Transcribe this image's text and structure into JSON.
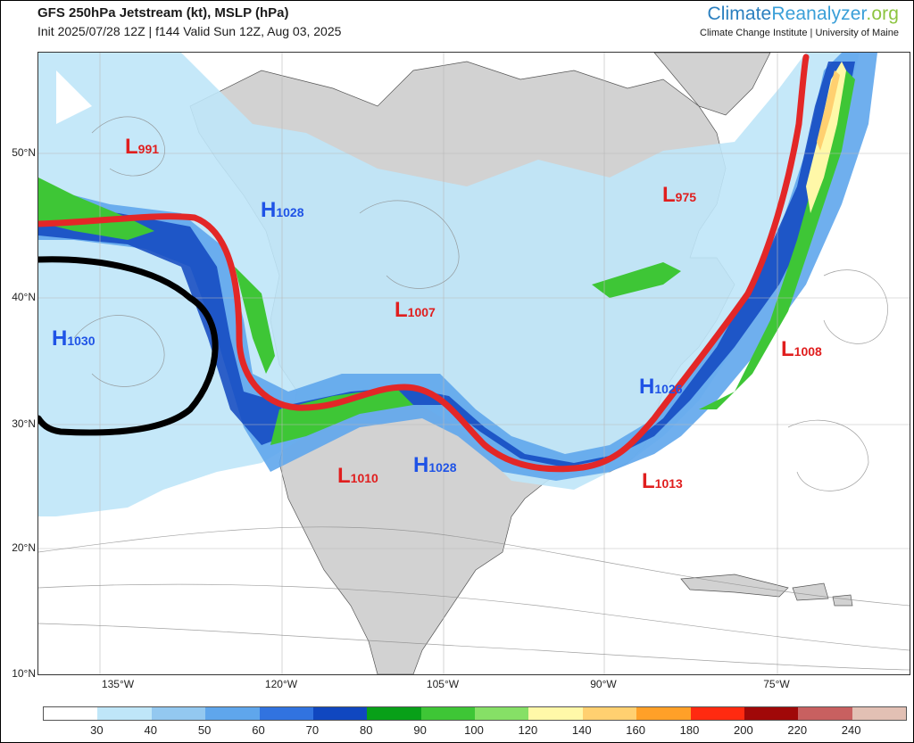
{
  "header": {
    "title": "GFS 250hPa Jetstream (kt), MSLP (hPa)",
    "subtitle": "Init 2025/07/28 12Z | f144 Valid Sun 12Z, Aug 03, 2025"
  },
  "brand": {
    "name_part1": "Climate",
    "name_part2": "Reanalyzer",
    "name_part3": ".org",
    "sub": "Climate Change Institute | University of Maine"
  },
  "axes": {
    "lat_labels": [
      "50°N",
      "40°N",
      "30°N",
      "20°N",
      "10°N"
    ],
    "lon_labels": [
      "135°W",
      "120°W",
      "105°W",
      "90°W",
      "75°W"
    ]
  },
  "pressure_centers": [
    {
      "type": "L",
      "value": "991"
    },
    {
      "type": "H",
      "value": "1028"
    },
    {
      "type": "L",
      "value": "975"
    },
    {
      "type": "H",
      "value": "1030"
    },
    {
      "type": "L",
      "value": "1007"
    },
    {
      "type": "L",
      "value": "1008"
    },
    {
      "type": "H",
      "value": "1026"
    },
    {
      "type": "L",
      "value": "1010"
    },
    {
      "type": "H",
      "value": "1028"
    },
    {
      "type": "L",
      "value": "1013"
    }
  ],
  "colorbar": {
    "labels": [
      "30",
      "40",
      "50",
      "60",
      "70",
      "80",
      "90",
      "100",
      "120",
      "140",
      "160",
      "180",
      "200",
      "220",
      "240"
    ],
    "colors": [
      "#ffffff",
      "#bfe6f8",
      "#93c8f0",
      "#5fa6ec",
      "#3173e0",
      "#1047c0",
      "#08a018",
      "#3ec636",
      "#86e066",
      "#fff8a8",
      "#ffd070",
      "#ffa028",
      "#ff2a10",
      "#a00808",
      "#c86060",
      "#e2c0b4"
    ]
  },
  "colors": {
    "jet_axis_line": "#e32727",
    "ridge_line": "#000000",
    "land": "#d2d2d2",
    "low": "#e01e1e",
    "high": "#1f53e6"
  }
}
